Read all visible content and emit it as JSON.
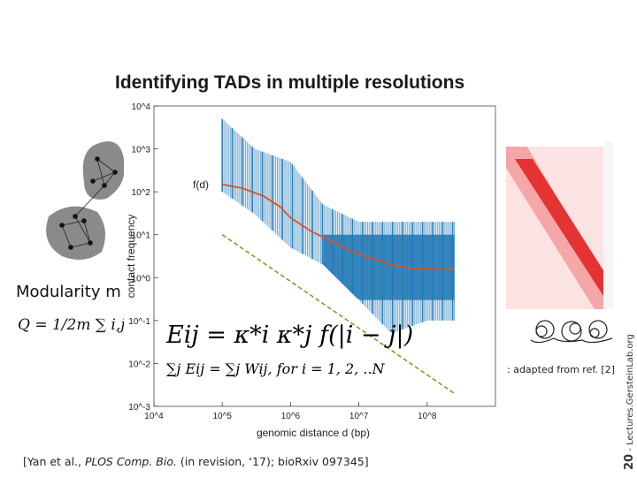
{
  "slide": {
    "title": "Identifying TADs in multiple resolutions",
    "modularity_label": "Modularity m",
    "q_equation": "Q = 1/2m ∑ i,j",
    "citation_prefix": "[Yan et al., ",
    "citation_journal": "PLOS Comp. Bio.",
    "citation_suffix": " (in revision, ‘17); bioRxiv 097345]",
    "figure_credit": ": adapted from ref. [2]",
    "side_number": "20",
    "side_text": " - Lectures.GersteinLab.org"
  },
  "equations": {
    "eq1": "Eij = κ*i κ*j f(|i − j|)",
    "eq2": "∑j Eij = ∑j Wij,  for i = 1, 2, ..N"
  },
  "chart_data": {
    "type": "scatter",
    "title": "",
    "xlabel": "genomic distance d (bp)",
    "ylabel": "contact frequency",
    "x_scale": "log",
    "y_scale": "log",
    "xlim": [
      10000,
      1000000000
    ],
    "ylim": [
      0.001,
      10000
    ],
    "x_ticks": [
      "10^4",
      "10^5",
      "10^6",
      "10^7",
      "10^8"
    ],
    "y_ticks": [
      "10^4",
      "10^3",
      "10^2",
      "10^1",
      "10^0",
      "10^-1",
      "10^-2",
      "10^-3"
    ],
    "annotation": "f(d)",
    "colors": {
      "scatter": "#1f77b4",
      "fd_curve": "#d9542a",
      "fit_line": "#7aa227"
    },
    "series": [
      {
        "name": "f(d)",
        "style": "solid",
        "x": [
          100000,
          200000,
          400000,
          700000,
          1000000,
          2000000,
          4000000,
          7000000,
          10000000,
          20000000,
          30000000,
          50000000,
          80000000,
          150000000,
          200000000,
          250000000
        ],
        "y": [
          150,
          120,
          80,
          45,
          25,
          12,
          7,
          4.5,
          3.5,
          2.5,
          2,
          1.7,
          1.6,
          1.6,
          1.5,
          1.7
        ]
      },
      {
        "style": "dashed",
        "x": [
          100000,
          250000000
        ],
        "y": [
          10,
          0.002
        ]
      }
    ],
    "scatter_band": {
      "x_start": 100000,
      "x_end": 250000000,
      "upper_edge": [
        [
          100000,
          5000
        ],
        [
          300000,
          1000
        ],
        [
          1000000,
          500
        ],
        [
          3000000,
          50
        ],
        [
          10000000,
          20
        ],
        [
          30000000,
          20
        ],
        [
          100000000,
          20
        ],
        [
          250000000,
          20
        ]
      ],
      "lower_edge": [
        [
          100000,
          100
        ],
        [
          300000,
          30
        ],
        [
          1000000,
          5
        ],
        [
          3000000,
          2
        ],
        [
          10000000,
          0.3
        ],
        [
          30000000,
          0.05
        ],
        [
          100000000,
          0.1
        ],
        [
          250000000,
          0.1
        ]
      ]
    }
  }
}
